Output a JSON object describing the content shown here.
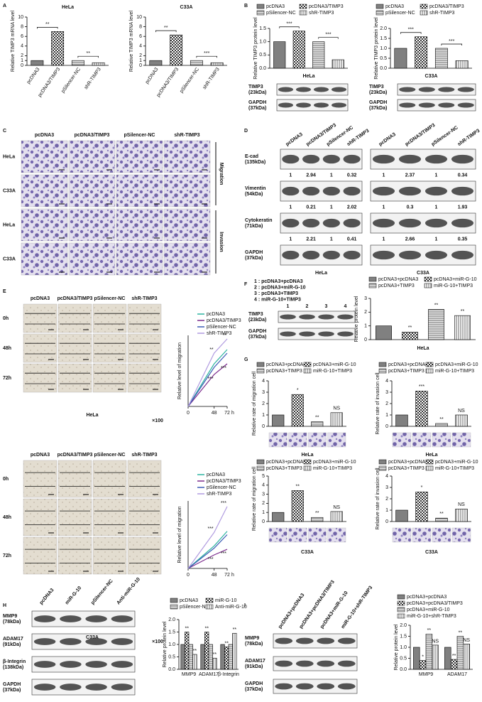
{
  "panel_labels": [
    "A",
    "B",
    "C",
    "D",
    "E",
    "F",
    "G",
    "H",
    "I"
  ],
  "chart_data": [
    {
      "type": "bar",
      "title": "HeLa",
      "ylabel": "Relative TIMP3 mRNA level",
      "categories": [
        "pcDNA3",
        "pcDNA3/TIMP3",
        "pSilencer-NC",
        "shR-TIMP3"
      ],
      "values": [
        1,
        7,
        1,
        0.55
      ],
      "ylim": [
        0,
        10
      ],
      "yticks": [
        0,
        1,
        2,
        4,
        6,
        8,
        10
      ],
      "brackets": [
        "**",
        "**"
      ]
    },
    {
      "type": "bar",
      "title": "C33A",
      "ylabel": "Relative TIMP3 mRNA level",
      "categories": [
        "pcDNA3",
        "pcDNA3/TIMP3",
        "pSilencer-NC",
        "shR-TIMP3"
      ],
      "values": [
        1,
        6.3,
        1,
        0.55
      ],
      "ylim": [
        0,
        10
      ],
      "yticks": [
        0,
        1,
        2,
        4,
        6,
        8,
        10
      ],
      "brackets": [
        "**",
        "***"
      ]
    },
    {
      "type": "bar",
      "xlabel": "HeLa",
      "ylabel": "Relative TIMP3 protein level",
      "legend": true,
      "categories": [
        "pcDNA3",
        "pcDNA3/TIMP3",
        "pSilencer-NC",
        "shR-TIMP3"
      ],
      "values": [
        1,
        1.4,
        1,
        0.32
      ],
      "ylim": [
        0,
        1.5
      ],
      "yticks": [
        {
          "value": 0,
          "label": "0.0"
        },
        0.5,
        {
          "value": 1,
          "label": "1.0"
        },
        1.5
      ],
      "brackets": [
        "***",
        "***"
      ]
    },
    {
      "type": "bar",
      "xlabel": "C33A",
      "ylabel": "Relative TIMP3 protein level",
      "legend": true,
      "categories": [
        "pcDNA3",
        "pcDNA3/TIMP3",
        "pSilencer-NC",
        "shR-TIMP3"
      ],
      "values": [
        1,
        1.58,
        1,
        0.38
      ],
      "ylim": [
        0,
        2
      ],
      "yticks": [
        {
          "value": 0,
          "label": "0.0"
        },
        0.5,
        {
          "value": 1,
          "label": "1.0"
        },
        1.5,
        {
          "value": 2,
          "label": "2.0"
        }
      ],
      "brackets": [
        "***",
        "***"
      ]
    },
    {
      "type": "line",
      "ylabel": "Relative level of migration",
      "xlabel": "h",
      "x": [
        0,
        48,
        72
      ],
      "xlim": [
        0,
        72
      ],
      "xticks": [
        0,
        48,
        72
      ],
      "ylim": [
        0,
        1
      ],
      "series": [
        {
          "name": "pcDNA3",
          "color": "#2bb3a0",
          "values": [
            0,
            0.6,
            0.8
          ]
        },
        {
          "name": "pcDNA3/TIMP3",
          "color": "#7b2a8c",
          "values": [
            0,
            0.45,
            0.6
          ]
        },
        {
          "name": "pSilencer-NC",
          "color": "#3b5bb5",
          "values": [
            0,
            0.55,
            0.75
          ]
        },
        {
          "name": "shR-TIMP3",
          "color": "#b09be0",
          "values": [
            0,
            0.75,
            0.95
          ]
        }
      ],
      "annotations": [
        "**",
        "***",
        "**",
        "***"
      ]
    },
    {
      "type": "line",
      "ylabel": "Relative level of migration",
      "xlabel": "h",
      "x": [
        0,
        48,
        72
      ],
      "xlim": [
        0,
        72
      ],
      "xticks": [
        0,
        48,
        72
      ],
      "ylim": [
        0,
        0.6
      ],
      "series": [
        {
          "name": "pcDNA3",
          "color": "#2bb3a0",
          "values": [
            0,
            0.2,
            0.33
          ]
        },
        {
          "name": "pcDNA3/TIMP3",
          "color": "#7b2a8c",
          "values": [
            0,
            0.12,
            0.17
          ]
        },
        {
          "name": "pSilencer-NC",
          "color": "#3b5bb5",
          "values": [
            0,
            0.18,
            0.3
          ]
        },
        {
          "name": "shR-TIMP3",
          "color": "#b09be0",
          "values": [
            0,
            0.32,
            0.55
          ]
        }
      ],
      "annotations": [
        "***",
        "***",
        "***",
        "***"
      ]
    },
    {
      "type": "bar",
      "xlabel": "HeLa",
      "ylabel": "Relative protein level",
      "legend": true,
      "categories": [
        "pcDNA3+pcDNA3",
        "pcDNA3+miR-G-10",
        "pcDNA3+TIMP3",
        "miR-G-10+TIMP3"
      ],
      "values": [
        1,
        0.55,
        2.2,
        1.75
      ],
      "ylim": [
        0,
        3
      ],
      "yticks": [
        0,
        1,
        2,
        3
      ],
      "sig": [
        null,
        "**",
        "**",
        "**"
      ]
    },
    {
      "type": "bar",
      "xlabel": "HeLa",
      "ylabel": "Relative rate of migration cell",
      "legend": true,
      "categories": [
        "pcDNA3+pcDNA3",
        "pcDNA3+miR-G-10",
        "pcDNA3+TIMP3",
        "miR-G-10+TIMP3"
      ],
      "values": [
        1,
        2.8,
        0.4,
        1.2
      ],
      "ylim": [
        0,
        4
      ],
      "yticks": [
        0,
        1,
        2,
        3,
        4
      ],
      "sig": [
        null,
        "*",
        "**",
        "NS"
      ]
    },
    {
      "type": "bar",
      "xlabel": "HeLa",
      "ylabel": "Relative rate of invasion cell",
      "legend": true,
      "categories": [
        "pcDNA3+pcDNA3",
        "pcDNA3+miR-G-10",
        "pcDNA3+TIMP3",
        "miR-G-10+TIMP3"
      ],
      "values": [
        1,
        3.1,
        0.25,
        1
      ],
      "ylim": [
        0,
        4
      ],
      "yticks": [
        0,
        1,
        2,
        3,
        4
      ],
      "sig": [
        null,
        "***",
        "**",
        "NS"
      ]
    },
    {
      "type": "bar",
      "xlabel": "C33A",
      "ylabel": "Relative rate of migration cell",
      "legend": true,
      "categories": [
        "pcDNA3+pcDNA3",
        "pcDNA3+miR-G-10",
        "pcDNA3+TIMP3",
        "miR-G-10+TIMP3"
      ],
      "values": [
        1,
        3.4,
        0.45,
        1.1
      ],
      "ylim": [
        0,
        5
      ],
      "yticks": [
        0,
        1,
        2,
        3,
        4,
        5
      ],
      "sig": [
        null,
        "**",
        "**",
        "NS"
      ]
    },
    {
      "type": "bar",
      "xlabel": "C33A",
      "ylabel": "Relative rate of invasion cell",
      "legend": true,
      "categories": [
        "pcDNA3+pcDNA3",
        "pcDNA3+miR-G-10",
        "pcDNA3+TIMP3",
        "miR-G-10+TIMP3"
      ],
      "values": [
        1,
        2.6,
        0.3,
        1.1
      ],
      "ylim": [
        0,
        4
      ],
      "yticks": [
        0,
        1,
        2,
        3,
        4
      ],
      "sig": [
        null,
        "*",
        "**",
        "NS"
      ]
    },
    {
      "type": "bar",
      "ylabel": "Relative protein level",
      "categories": [
        "MMP9",
        "ADAM17",
        "β-Integrin"
      ],
      "series": [
        {
          "name": "pcDNA3",
          "values": [
            1,
            1,
            1
          ]
        },
        {
          "name": "miR-G-10",
          "values": [
            1.5,
            1.5,
            0.9
          ],
          "sig": [
            "**",
            "**",
            "**"
          ]
        },
        {
          "name": "pSilencer-NC",
          "values": [
            1,
            1,
            1
          ]
        },
        {
          "name": "Anti-miR-G-10",
          "values": [
            0.6,
            0.45,
            1.45
          ],
          "sig": [
            "**",
            "**",
            "**"
          ]
        }
      ],
      "ylim": [
        0,
        2
      ],
      "yticks": [
        {
          "value": 0,
          "label": "0.0"
        },
        0.5,
        {
          "value": 1,
          "label": "1.0"
        },
        1.5,
        {
          "value": 2,
          "label": "2.0"
        }
      ]
    },
    {
      "type": "bar",
      "ylabel": "Relative protein level",
      "categories": [
        "MMP9",
        "ADAM17"
      ],
      "series": [
        {
          "name": "pcDNA3+pcDNA3",
          "values": [
            1,
            1
          ]
        },
        {
          "name": "pcDNA3+pcDNA3/TIMP3",
          "values": [
            0.4,
            0.45
          ],
          "sig": [
            "*",
            "**"
          ]
        },
        {
          "name": "pcDNA3+miR-G-10",
          "values": [
            1.6,
            1.5
          ],
          "sig": [
            "**",
            "**"
          ]
        },
        {
          "name": "miR-G-10+shR-TIMP3",
          "values": [
            1.1,
            1.15
          ],
          "sig": [
            "NS",
            "NS"
          ]
        }
      ],
      "ylim": [
        0,
        2
      ],
      "yticks": [
        {
          "value": 0,
          "label": "0.0"
        },
        0.5,
        {
          "value": 1,
          "label": "1.0"
        },
        1.5,
        {
          "value": 2,
          "label": "2.0"
        }
      ]
    }
  ],
  "blots": [
    {
      "rows": [
        {
          "name": "TIMP3",
          "size": "(23kDa)"
        },
        {
          "name": "GAPDH",
          "size": "(37kDa)"
        }
      ]
    },
    {
      "rows": [
        {
          "name": "TIMP3",
          "size": "(23kDa)"
        },
        {
          "name": "GAPDH",
          "size": "(37kDa)"
        }
      ]
    },
    {
      "lanes": [
        "pcDNA3",
        "pcDNA3/TIMP3",
        "pSilencer-NC",
        "shR-TIMP3"
      ],
      "rows": [
        {
          "name": "E-cad",
          "size": "(135kDa)"
        },
        {
          "name": "Vimentin",
          "size": "(54kDa)"
        },
        {
          "name": "Cytokeratin",
          "size": "(71kDa)"
        },
        {
          "name": "GAPDH",
          "size": "(37kDa)"
        }
      ],
      "quant": [
        [
          1,
          2.94,
          1,
          0.32
        ],
        [
          1,
          0.21,
          1,
          2.02
        ],
        [
          1,
          2.21,
          1,
          0.41
        ]
      ],
      "footer": "HeLa"
    },
    {
      "lanes": [
        "pcDNA3",
        "pcDNA3/TIMP3",
        "pSilencer-NC",
        "shR-TIMP3"
      ],
      "quant": [
        [
          1,
          2.37,
          1,
          0.34
        ],
        [
          1,
          0.3,
          1,
          1.93
        ],
        [
          1,
          2.66,
          1,
          0.35
        ]
      ],
      "footer": "C33A"
    },
    {
      "key": [
        "1 : pcDNA3+pcDNA3",
        "2 : pcDNA3+miR-G-10",
        "3 : pcDNA3+TIMP3",
        "4 : miR-G-10+TIMP3"
      ],
      "lanes": [
        "1",
        "2",
        "3",
        "4"
      ],
      "rows": [
        {
          "name": "TIMP3",
          "size": "(23kDa)"
        },
        {
          "name": "GAPDH",
          "size": "(37kDa)"
        }
      ]
    },
    {
      "lanes": [
        "pcDNA3",
        "miR-G-10",
        "pSilencer-NC",
        "Anti-miR-G-10"
      ],
      "rows": [
        {
          "name": "MMP9",
          "size": "(78kDa)"
        },
        {
          "name": "ADAM17",
          "size": "(91kDa)"
        },
        {
          "name": "β-Integrin",
          "size": "(138kDa)"
        },
        {
          "name": "GAPDH",
          "size": "(37kDa)"
        }
      ]
    },
    {
      "lanes": [
        "pcDNA3+pcDNA3",
        "pcDNA3+pcDNA3/TIMP3",
        "pcDNA3+miR-G-10",
        "miR-G-10+shR-TIMP3"
      ],
      "rows": [
        {
          "name": "MMP9",
          "size": "(78kDa)"
        },
        {
          "name": "ADAM17",
          "size": "(91kDa)"
        },
        {
          "name": "GAPDH",
          "size": "(37kDa)"
        }
      ]
    }
  ],
  "micrographs": [
    {
      "columns": [
        "pcDNA3",
        "pcDNA3/TIMP3",
        "pSilencer-NC",
        "shR-TIMP3"
      ],
      "rows": [
        "HeLa",
        "C33A",
        "HeLa",
        "C33A"
      ],
      "groups": [
        "Migration",
        "Invasion"
      ]
    },
    {
      "columns": [
        "pcDNA3",
        "pcDNA3/TIMP3",
        "pSilencer-NC",
        "shR-TIMP3"
      ],
      "rows": [
        "0h",
        "48h",
        "72h"
      ],
      "caption": "HeLa",
      "magnification": "×100"
    },
    {
      "columns": [
        "pcDNA3",
        "pcDNA3/TIMP3",
        "pSilencer-NC",
        "shR-TIMP3"
      ],
      "rows": [
        "0h",
        "48h",
        "72h"
      ],
      "caption": "C33A",
      "magnification": "×100"
    }
  ]
}
